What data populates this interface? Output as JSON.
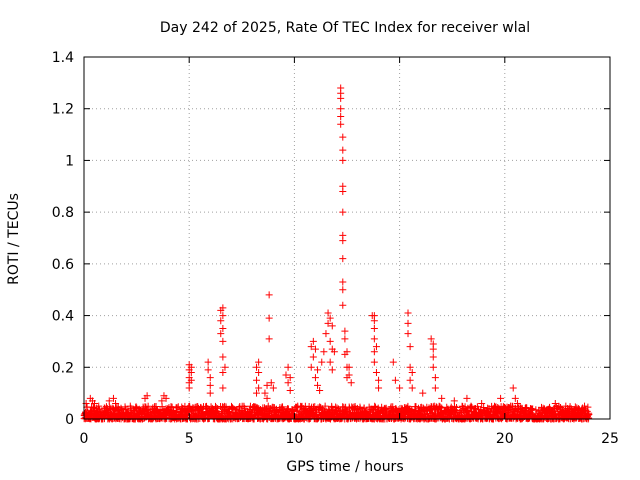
{
  "chart_data": {
    "type": "scatter",
    "title": "Day 242 of 2025, Rate Of TEC Index for receiver wlal",
    "xlabel": "GPS time / hours",
    "ylabel": "ROTI / TECUs",
    "xlim": [
      0,
      25
    ],
    "ylim": [
      0,
      1.4
    ],
    "x_ticks": [
      "0",
      "5",
      "10",
      "15",
      "20",
      "25"
    ],
    "y_ticks": [
      "0",
      "0.2",
      "0.4",
      "0.6",
      "0.8",
      "1",
      "1.2",
      "1.4"
    ],
    "grid": true,
    "marker": "plus",
    "color": "#ff0000",
    "series": [
      {
        "baseline": {
          "x_range": [
            0,
            24
          ],
          "y_range": [
            0,
            0.05
          ]
        },
        "x": [
          0.1,
          0.3,
          0.4,
          0.5,
          0.7,
          1.2,
          1.4,
          1.5,
          2.2,
          2.9,
          3.0,
          3.7,
          3.8,
          3.9,
          5.0,
          5.0,
          5.0,
          5.0,
          5.0,
          5.1,
          5.1,
          5.1,
          5.9,
          5.9,
          6.0,
          6.0,
          6.0,
          6.5,
          6.5,
          6.5,
          6.6,
          6.6,
          6.6,
          6.6,
          6.6,
          6.6,
          6.6,
          6.7,
          8.2,
          8.2,
          8.2,
          8.3,
          8.3,
          8.3,
          8.6,
          8.7,
          8.7,
          8.8,
          8.8,
          8.8,
          8.9,
          9.0,
          9.6,
          9.7,
          9.7,
          9.8,
          9.8,
          10.8,
          10.8,
          10.9,
          10.9,
          11.0,
          11.0,
          11.1,
          11.1,
          11.2,
          11.3,
          11.4,
          11.5,
          11.6,
          11.6,
          11.7,
          11.7,
          11.7,
          11.8,
          11.8,
          11.8,
          11.9,
          12.2,
          12.2,
          12.2,
          12.2,
          12.2,
          12.2,
          12.3,
          12.3,
          12.3,
          12.3,
          12.3,
          12.3,
          12.3,
          12.3,
          12.3,
          12.3,
          12.3,
          12.3,
          12.4,
          12.4,
          12.4,
          12.5,
          12.5,
          12.5,
          12.6,
          12.6,
          12.7,
          13.7,
          13.8,
          13.8,
          13.8,
          13.8,
          13.8,
          13.8,
          13.9,
          13.9,
          14.0,
          14.0,
          14.7,
          14.8,
          15.0,
          15.4,
          15.4,
          15.4,
          15.5,
          15.5,
          15.5,
          15.6,
          15.6,
          16.1,
          16.5,
          16.6,
          16.6,
          16.6,
          16.6,
          16.7,
          16.7,
          17.0,
          17.6,
          18.2,
          18.9,
          19.8,
          20.4,
          20.5,
          20.6,
          22.4,
          22.9,
          23.5
        ],
        "y": [
          0.06,
          0.08,
          0.07,
          0.06,
          0.05,
          0.07,
          0.08,
          0.06,
          0.05,
          0.08,
          0.09,
          0.07,
          0.09,
          0.08,
          0.21,
          0.19,
          0.16,
          0.14,
          0.12,
          0.2,
          0.18,
          0.15,
          0.22,
          0.19,
          0.16,
          0.13,
          0.1,
          0.42,
          0.38,
          0.33,
          0.43,
          0.4,
          0.35,
          0.3,
          0.24,
          0.18,
          0.12,
          0.2,
          0.2,
          0.15,
          0.1,
          0.22,
          0.18,
          0.12,
          0.1,
          0.13,
          0.08,
          0.48,
          0.39,
          0.31,
          0.14,
          0.12,
          0.17,
          0.2,
          0.14,
          0.16,
          0.11,
          0.28,
          0.2,
          0.3,
          0.24,
          0.27,
          0.16,
          0.19,
          0.13,
          0.11,
          0.22,
          0.26,
          0.33,
          0.41,
          0.37,
          0.39,
          0.3,
          0.22,
          0.36,
          0.27,
          0.19,
          0.26,
          1.28,
          1.26,
          1.24,
          1.2,
          1.17,
          1.14,
          1.09,
          1.04,
          1.0,
          0.9,
          0.88,
          0.8,
          0.71,
          0.69,
          0.62,
          0.53,
          0.5,
          0.44,
          0.34,
          0.31,
          0.25,
          0.26,
          0.2,
          0.16,
          0.2,
          0.17,
          0.14,
          0.4,
          0.4,
          0.38,
          0.35,
          0.31,
          0.26,
          0.22,
          0.28,
          0.18,
          0.15,
          0.12,
          0.22,
          0.15,
          0.12,
          0.41,
          0.37,
          0.33,
          0.28,
          0.2,
          0.15,
          0.18,
          0.12,
          0.1,
          0.31,
          0.29,
          0.27,
          0.24,
          0.2,
          0.16,
          0.12,
          0.08,
          0.07,
          0.08,
          0.06,
          0.08,
          0.12,
          0.08,
          0.06,
          0.06,
          0.05,
          0.04
        ]
      }
    ]
  }
}
